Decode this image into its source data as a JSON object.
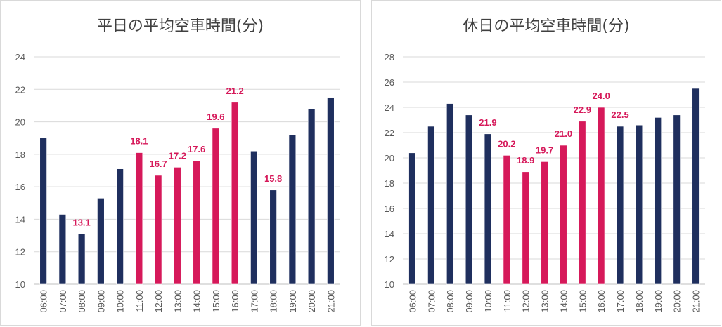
{
  "colors": {
    "normal": "#1f2f5e",
    "highlight": "#d6195a",
    "grid": "#d9d9d9",
    "axis": "#bfbfbf",
    "tick_text": "#595959"
  },
  "chart_data": [
    {
      "type": "bar",
      "title": "平日の平均空車時間(分)",
      "categories": [
        "06:00",
        "07:00",
        "08:00",
        "09:00",
        "10:00",
        "11:00",
        "12:00",
        "13:00",
        "14:00",
        "15:00",
        "16:00",
        "17:00",
        "18:00",
        "19:00",
        "20:00",
        "21:00"
      ],
      "values": [
        19.0,
        14.3,
        13.1,
        15.3,
        17.1,
        18.1,
        16.7,
        17.2,
        17.6,
        19.6,
        21.2,
        18.2,
        15.8,
        19.2,
        20.8,
        21.5
      ],
      "highlighted": [
        false,
        false,
        false,
        false,
        false,
        true,
        true,
        true,
        true,
        true,
        true,
        false,
        false,
        false,
        false,
        false
      ],
      "data_labels": [
        "",
        "",
        "13.1",
        "",
        "",
        "18.1",
        "16.7",
        "17.2",
        "17.6",
        "19.6",
        "21.2",
        "",
        "15.8",
        "",
        "",
        ""
      ],
      "yticks": [
        "10",
        "12",
        "14",
        "16",
        "18",
        "20",
        "22",
        "24"
      ],
      "ylim": [
        10,
        24
      ],
      "xlabel": "",
      "ylabel": "",
      "grid": true
    },
    {
      "type": "bar",
      "title": "休日の平均空車時間(分)",
      "categories": [
        "06:00",
        "07:00",
        "08:00",
        "09:00",
        "10:00",
        "11:00",
        "12:00",
        "13:00",
        "14:00",
        "15:00",
        "16:00",
        "17:00",
        "18:00",
        "19:00",
        "20:00",
        "21:00"
      ],
      "values": [
        20.4,
        22.5,
        24.3,
        23.4,
        21.9,
        20.2,
        18.9,
        19.7,
        21.0,
        22.9,
        24.0,
        22.5,
        22.6,
        23.2,
        23.4,
        25.5
      ],
      "highlighted": [
        false,
        false,
        false,
        false,
        false,
        true,
        true,
        true,
        true,
        true,
        true,
        false,
        false,
        false,
        false,
        false
      ],
      "data_labels": [
        "",
        "",
        "",
        "",
        "21.9",
        "20.2",
        "18.9",
        "19.7",
        "21.0",
        "22.9",
        "24.0",
        "22.5",
        "",
        "",
        "",
        ""
      ],
      "yticks": [
        "10",
        "12",
        "14",
        "16",
        "18",
        "20",
        "22",
        "24",
        "26",
        "28"
      ],
      "ylim": [
        10,
        28
      ],
      "xlabel": "",
      "ylabel": "",
      "grid": true
    }
  ]
}
